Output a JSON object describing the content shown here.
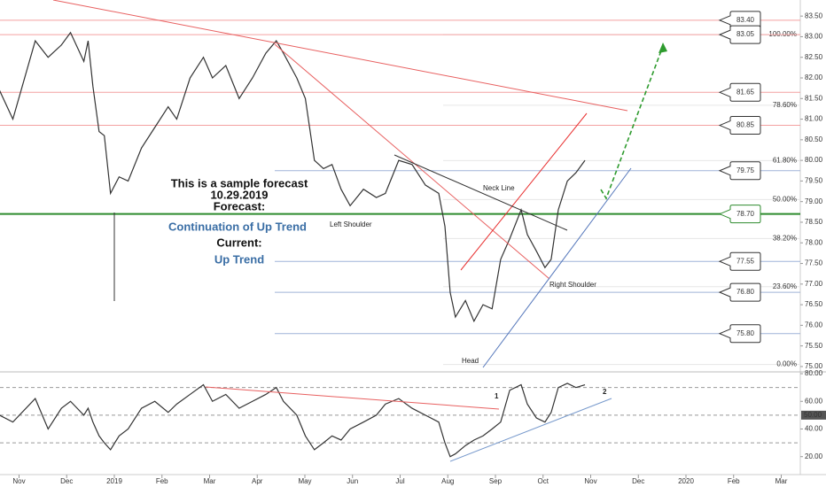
{
  "chart_data": [
    {
      "type": "line",
      "color": "#333333",
      "x": [
        -0.41,
        -0.13,
        0.34,
        0.61,
        0.89,
        1.08,
        1.36,
        1.45,
        1.55,
        1.68,
        1.79,
        1.92,
        2.1,
        2.29,
        2.57,
        2.85,
        3.13,
        3.31,
        3.59,
        3.87,
        4.06,
        4.34,
        4.62,
        4.9,
        5.18,
        5.4,
        5.55,
        5.83,
        6.01,
        6.2,
        6.39,
        6.57,
        6.76,
        6.95,
        7.23,
        7.5,
        7.69,
        7.97,
        8.25,
        8.53,
        8.81,
        8.94,
        9.05,
        9.16,
        9.37,
        9.55,
        9.74,
        9.93,
        10.11,
        10.3,
        10.54,
        10.67,
        10.86,
        11.04,
        11.17,
        11.32,
        11.51,
        11.69,
        11.88
      ],
      "values": [
        81.7,
        81.0,
        82.9,
        82.5,
        82.8,
        83.1,
        82.4,
        82.9,
        81.8,
        80.7,
        80.6,
        79.2,
        79.6,
        79.5,
        80.3,
        80.8,
        81.3,
        81.0,
        82.0,
        82.5,
        82.0,
        82.3,
        81.5,
        82.0,
        82.6,
        82.9,
        82.6,
        82.0,
        81.5,
        80.0,
        79.8,
        79.9,
        79.3,
        78.9,
        79.3,
        79.1,
        79.2,
        80.0,
        79.9,
        79.4,
        79.2,
        78.4,
        76.8,
        76.2,
        76.6,
        76.1,
        76.5,
        76.4,
        77.6,
        78.1,
        78.8,
        78.2,
        77.8,
        77.4,
        77.6,
        78.8,
        79.5,
        79.7,
        80.0
      ],
      "xlim": [
        -0.4,
        16.4
      ],
      "xticks": [
        {
          "value": 0,
          "label": "Nov"
        },
        {
          "value": 1,
          "label": "Dec"
        },
        {
          "value": 2,
          "label": "2019"
        },
        {
          "value": 3,
          "label": "Feb"
        },
        {
          "value": 4,
          "label": "Mar"
        },
        {
          "value": 5,
          "label": "Apr"
        },
        {
          "value": 6,
          "label": "May"
        },
        {
          "value": 7,
          "label": "Jun"
        },
        {
          "value": 8,
          "label": "Jul"
        },
        {
          "value": 9,
          "label": "Aug"
        },
        {
          "value": 10,
          "label": "Sep"
        },
        {
          "value": 11,
          "label": "Oct"
        },
        {
          "value": 12,
          "label": "Nov"
        },
        {
          "value": 13,
          "label": "Dec"
        },
        {
          "value": 14,
          "label": "2020"
        },
        {
          "value": 15,
          "label": "Feb"
        },
        {
          "value": 16,
          "label": "Mar"
        }
      ],
      "ylim": [
        74.87,
        83.89
      ],
      "yticks": [
        {
          "value": 75,
          "label": "75.00"
        },
        {
          "value": 75.5,
          "label": "75.50"
        },
        {
          "value": 76,
          "label": "76.00"
        },
        {
          "value": 76.5,
          "label": "76.50"
        },
        {
          "value": 77,
          "label": "77.00"
        },
        {
          "value": 77.5,
          "label": "77.50"
        },
        {
          "value": 78,
          "label": "78.00"
        },
        {
          "value": 78.5,
          "label": "78.50"
        },
        {
          "value": 79,
          "label": "79.00"
        },
        {
          "value": 79.5,
          "label": "79.50"
        },
        {
          "value": 80,
          "label": "80.00"
        },
        {
          "value": 80.5,
          "label": "80.50"
        },
        {
          "value": 81,
          "label": "81.00"
        },
        {
          "value": 81.5,
          "label": "81.50"
        },
        {
          "value": 82,
          "label": "82.00"
        },
        {
          "value": 82.5,
          "label": "82.50"
        },
        {
          "value": 83,
          "label": "83.00"
        },
        {
          "value": 83.5,
          "label": "83.50"
        }
      ],
      "levels": [
        {
          "value": 83.4,
          "label": "83.40",
          "color": "#f4a0a0"
        },
        {
          "value": 83.05,
          "label": "83.05",
          "color": "#f4a0a0"
        },
        {
          "value": 81.65,
          "label": "81.65",
          "color": "#f4a0a0"
        },
        {
          "value": 80.85,
          "label": "80.85",
          "color": "#f4a0a0"
        },
        {
          "value": 79.75,
          "label": "79.75",
          "color": "#9fb4d8"
        },
        {
          "value": 78.7,
          "label": "78.70",
          "color": "#2e8b2e"
        },
        {
          "value": 77.55,
          "label": "77.55",
          "color": "#9fb4d8"
        },
        {
          "value": 76.8,
          "label": "76.80",
          "color": "#9fb4d8"
        },
        {
          "value": 75.8,
          "label": "75.80",
          "color": "#9fb4d8"
        }
      ],
      "fib": {
        "high": 83.05,
        "low": 75.05,
        "levels": [
          {
            "value": 100,
            "label": "100.00%"
          },
          {
            "value": 78.6,
            "label": "78.60%"
          },
          {
            "value": 61.8,
            "label": "61.80%"
          },
          {
            "value": 50,
            "label": "50.00%"
          },
          {
            "value": 38.2,
            "label": "38.20%"
          },
          {
            "value": 23.6,
            "label": "23.60%"
          },
          {
            "value": 0,
            "label": "0.00%"
          }
        ]
      },
      "annotations": [
        "Neck Line",
        "Left Shoulder",
        "Right Shoulder",
        "Head"
      ],
      "forecast_note": [
        "This is a sample forecast",
        "10.29.2019",
        "Forecast:",
        "Continuation of Up Trend",
        "Current:",
        "Up Trend"
      ]
    },
    {
      "type": "line",
      "color": "#333333",
      "values": [
        50,
        45,
        62,
        40,
        55,
        60,
        50,
        55,
        45,
        35,
        30,
        25,
        35,
        40,
        55,
        60,
        52,
        58,
        65,
        72,
        60,
        65,
        55,
        60,
        65,
        70,
        60,
        50,
        35,
        25,
        30,
        35,
        32,
        40,
        45,
        50,
        58,
        62,
        55,
        50,
        45,
        30,
        20,
        22,
        28,
        32,
        35,
        40,
        45,
        68,
        72,
        58,
        48,
        45,
        52,
        70,
        73,
        70,
        72
      ],
      "ylim": [
        7,
        81.3
      ],
      "yticks": [
        {
          "value": 20,
          "label": "20.00"
        },
        {
          "value": 40,
          "label": "40.00"
        },
        {
          "value": 60,
          "label": "60.00"
        },
        {
          "value": 80,
          "label": "80.00"
        }
      ],
      "levels": [
        30,
        50,
        70
      ],
      "marker": {
        "value": 50,
        "label": "50.00"
      },
      "annotations": [
        "1",
        "2"
      ]
    }
  ]
}
